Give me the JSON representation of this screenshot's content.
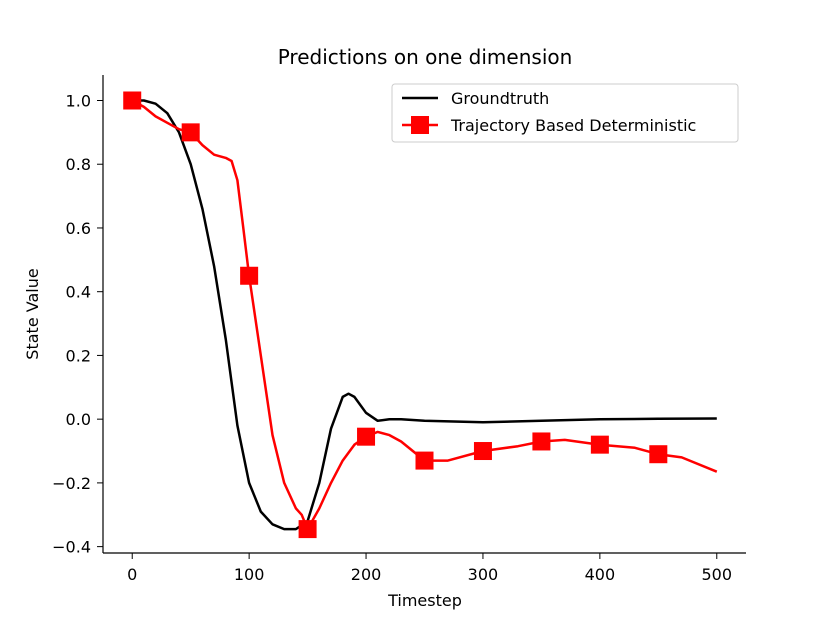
{
  "chart_data": {
    "type": "line",
    "title": "Predictions on one dimension",
    "xlabel": "Timestep",
    "ylabel": "State Value",
    "xlim": [
      -25,
      525
    ],
    "ylim": [
      -0.42,
      1.08
    ],
    "xticks": [
      0,
      100,
      200,
      300,
      400,
      500
    ],
    "xtick_labels": [
      "0",
      "100",
      "200",
      "300",
      "400",
      "500"
    ],
    "yticks": [
      -0.4,
      -0.2,
      0.0,
      0.2,
      0.4,
      0.6,
      0.8,
      1.0
    ],
    "ytick_labels": [
      "−0.4",
      "−0.2",
      "0.0",
      "0.2",
      "0.4",
      "0.6",
      "0.8",
      "1.0"
    ],
    "legend_position": "top-right",
    "series": [
      {
        "name": "Groundtruth",
        "color": "#000000",
        "marker": "none",
        "x": [
          0,
          10,
          20,
          30,
          40,
          50,
          60,
          70,
          80,
          90,
          100,
          110,
          120,
          130,
          140,
          150,
          160,
          170,
          180,
          185,
          190,
          200,
          210,
          220,
          230,
          250,
          300,
          350,
          400,
          450,
          500
        ],
        "y": [
          1.0,
          1.0,
          0.99,
          0.96,
          0.9,
          0.8,
          0.66,
          0.48,
          0.25,
          -0.02,
          -0.2,
          -0.29,
          -0.33,
          -0.345,
          -0.345,
          -0.32,
          -0.2,
          -0.03,
          0.07,
          0.08,
          0.07,
          0.02,
          -0.005,
          0.0,
          0.0,
          -0.005,
          -0.01,
          -0.005,
          0.0,
          0.001,
          0.002
        ]
      },
      {
        "name": "Trajectory Based Deterministic",
        "color": "#ff0000",
        "marker": "square",
        "x": [
          0,
          10,
          20,
          30,
          40,
          50,
          60,
          70,
          80,
          85,
          90,
          95,
          100,
          110,
          120,
          130,
          140,
          145,
          150,
          160,
          170,
          180,
          190,
          200,
          210,
          220,
          230,
          240,
          250,
          270,
          300,
          330,
          350,
          370,
          400,
          430,
          450,
          470,
          500
        ],
        "y": [
          1.0,
          0.98,
          0.95,
          0.93,
          0.91,
          0.9,
          0.86,
          0.83,
          0.82,
          0.81,
          0.75,
          0.6,
          0.45,
          0.2,
          -0.05,
          -0.2,
          -0.28,
          -0.3,
          -0.345,
          -0.28,
          -0.2,
          -0.13,
          -0.08,
          -0.055,
          -0.04,
          -0.05,
          -0.07,
          -0.1,
          -0.13,
          -0.13,
          -0.1,
          -0.085,
          -0.07,
          -0.065,
          -0.08,
          -0.09,
          -0.11,
          -0.12,
          -0.165
        ],
        "marker_x": [
          0,
          50,
          100,
          150,
          200,
          250,
          300,
          350,
          400,
          450
        ],
        "marker_y": [
          1.0,
          0.9,
          0.45,
          -0.345,
          -0.055,
          -0.13,
          -0.1,
          -0.07,
          -0.08,
          -0.11
        ]
      }
    ]
  }
}
